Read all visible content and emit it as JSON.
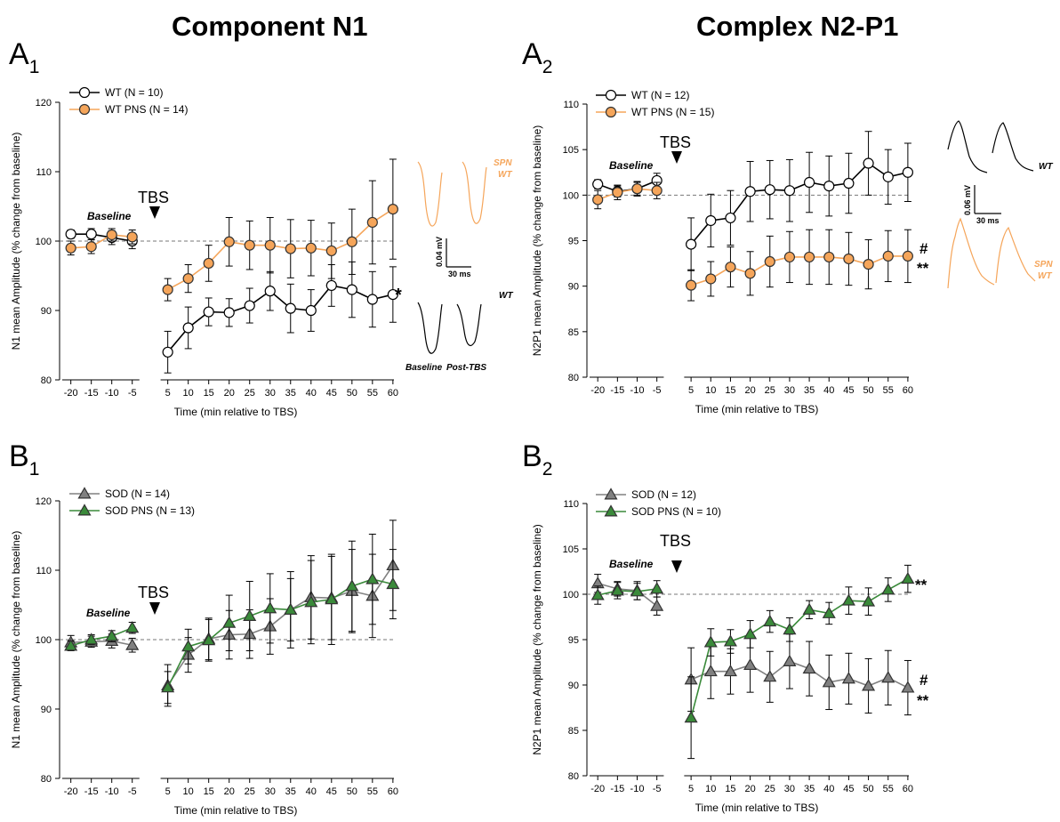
{
  "titles": {
    "left": "Component N1",
    "right": "Complex N2-P1"
  },
  "labels": {
    "a1": {
      "main": "A",
      "sub": "1"
    },
    "a2": {
      "main": "A",
      "sub": "2"
    },
    "b1": {
      "main": "B",
      "sub": "1"
    },
    "b2": {
      "main": "B",
      "sub": "2"
    }
  },
  "colors": {
    "wt": "#ffffff",
    "wt_pns": "#f5a55a",
    "sod": "#808080",
    "sod_pns": "#3a8a3a",
    "orange_text": "#f5a55a"
  },
  "chart_data": [
    {
      "id": "A1",
      "type": "line",
      "title": "",
      "xlabel": "Time (min relative to TBS)",
      "ylabel": "N1 mean Amplitude (% change from baseline)",
      "ylim": [
        80,
        120
      ],
      "yticks": [
        80,
        90,
        100,
        110,
        120
      ],
      "x": [
        -20,
        -15,
        -10,
        -5,
        5,
        10,
        15,
        20,
        25,
        30,
        35,
        40,
        45,
        50,
        55,
        60
      ],
      "xtick_labels": [
        "-20",
        "-15",
        "-10",
        "-5",
        "5",
        "10",
        "15",
        "20",
        "25",
        "30",
        "35",
        "40",
        "45",
        "50",
        "55",
        "60"
      ],
      "marker": "circle",
      "baseline_text": "Baseline",
      "tbs_text": "TBS",
      "tbs_at": -2,
      "series": [
        {
          "name": "WT (N = 10)",
          "color_key": "wt",
          "line": "#000000",
          "values": [
            101.0,
            101.0,
            100.5,
            100.0,
            84.0,
            87.5,
            89.8,
            89.7,
            90.7,
            92.8,
            90.3,
            90.0,
            93.6,
            93.0,
            91.6,
            92.3
          ],
          "errors": [
            0.6,
            0.8,
            1.0,
            1.1,
            3.0,
            3.0,
            2.0,
            2.0,
            2.5,
            2.8,
            3.5,
            3.0,
            3.0,
            4.0,
            4.0,
            4.0
          ]
        },
        {
          "name": "WT PNS (N = 14)",
          "color_key": "wt_pns",
          "line": "#f5a55a",
          "values": [
            99.0,
            99.2,
            100.9,
            100.6,
            93.0,
            94.6,
            96.8,
            99.9,
            99.4,
            99.4,
            98.9,
            99.0,
            98.6,
            99.9,
            102.7,
            104.6
          ],
          "errors": [
            1.0,
            1.0,
            0.9,
            1.0,
            1.6,
            2.0,
            2.6,
            3.5,
            3.5,
            4.0,
            4.2,
            4.0,
            4.0,
            4.7,
            6.0,
            7.2
          ]
        }
      ],
      "annotations": [
        "*"
      ]
    },
    {
      "id": "A2",
      "type": "line",
      "title": "",
      "xlabel": "Time (min relative to TBS)",
      "ylabel": "N2P1 mean Amplitude (% change from baseline)",
      "ylim": [
        80,
        110
      ],
      "yticks": [
        80,
        85,
        90,
        95,
        100,
        105,
        110
      ],
      "x": [
        -20,
        -15,
        -10,
        -5,
        5,
        10,
        15,
        20,
        25,
        30,
        35,
        40,
        45,
        50,
        55,
        60
      ],
      "xtick_labels": [
        "-20",
        "-15",
        "-10",
        "-5",
        "5",
        "10",
        "15",
        "20",
        "25",
        "30",
        "35",
        "40",
        "45",
        "50",
        "55",
        "60"
      ],
      "marker": "circle",
      "baseline_text": "Baseline",
      "tbs_text": "TBS",
      "tbs_at": 1,
      "series": [
        {
          "name": "WT (N = 12)",
          "color_key": "wt",
          "line": "#000000",
          "values": [
            101.2,
            100.4,
            100.7,
            101.6,
            94.6,
            97.2,
            97.5,
            100.4,
            100.6,
            100.5,
            101.4,
            101.0,
            101.3,
            103.5,
            102.0,
            102.5
          ],
          "errors": [
            0.5,
            0.6,
            0.7,
            0.8,
            2.9,
            2.9,
            3.0,
            3.3,
            3.2,
            3.4,
            3.3,
            3.3,
            3.3,
            3.5,
            3.0,
            3.2
          ]
        },
        {
          "name": "WT PNS (N = 15)",
          "color_key": "wt_pns",
          "line": "#f5a55a",
          "values": [
            99.5,
            100.3,
            100.7,
            100.5,
            90.1,
            90.8,
            92.1,
            91.4,
            92.7,
            93.2,
            93.2,
            93.2,
            93.0,
            92.4,
            93.3,
            93.3
          ],
          "errors": [
            1.0,
            0.8,
            0.8,
            0.9,
            1.7,
            1.9,
            2.2,
            2.4,
            2.8,
            2.8,
            3.0,
            3.0,
            2.9,
            2.7,
            2.8,
            2.9
          ]
        }
      ],
      "annotations": [
        "#",
        "**"
      ]
    },
    {
      "id": "B1",
      "type": "line",
      "title": "",
      "xlabel": "Time (min relative to TBS)",
      "ylabel": "N1 mean Amplitude (% change from baseline)",
      "ylim": [
        80,
        120
      ],
      "yticks": [
        80,
        90,
        100,
        110,
        120
      ],
      "x": [
        -20,
        -15,
        -10,
        -5,
        5,
        10,
        15,
        20,
        25,
        30,
        35,
        40,
        45,
        50,
        55,
        60
      ],
      "xtick_labels": [
        "-20",
        "-15",
        "-10",
        "-5",
        "5",
        "10",
        "15",
        "20",
        "25",
        "30",
        "35",
        "40",
        "45",
        "50",
        "55",
        "60"
      ],
      "marker": "triangle",
      "baseline_text": "Baseline",
      "tbs_text": "TBS",
      "tbs_at": -2,
      "series": [
        {
          "name": "SOD (N = 14)",
          "color_key": "sod",
          "line": "#808080",
          "values": [
            99.6,
            99.7,
            99.8,
            99.2,
            93.4,
            97.8,
            100.1,
            100.7,
            100.8,
            101.9,
            104.3,
            106.1,
            106.0,
            107.0,
            106.3,
            110.7
          ],
          "errors": [
            1.0,
            0.8,
            1.0,
            1.0,
            3.0,
            2.5,
            3.0,
            3.5,
            3.5,
            4.0,
            4.5,
            6.0,
            6.0,
            6.0,
            6.0,
            6.5
          ]
        },
        {
          "name": "SOD PNS (N = 13)",
          "color_key": "sod_pns",
          "line": "#3a8a3a",
          "values": [
            99.1,
            100.0,
            100.5,
            101.7,
            93.1,
            99.0,
            99.9,
            102.4,
            103.4,
            104.5,
            104.3,
            105.4,
            105.8,
            107.7,
            108.7,
            108.0
          ],
          "errors": [
            0.7,
            0.7,
            0.8,
            0.8,
            2.3,
            2.5,
            3.0,
            4.0,
            5.0,
            5.0,
            5.5,
            6.0,
            6.5,
            6.5,
            6.5,
            5.0
          ]
        }
      ],
      "annotations": []
    },
    {
      "id": "B2",
      "type": "line",
      "title": "",
      "xlabel": "Time (min relative to TBS)",
      "ylabel": "N2P1 mean Amplitude (% change from baseline)",
      "ylim": [
        80,
        110
      ],
      "yticks": [
        80,
        85,
        90,
        95,
        100,
        105,
        110
      ],
      "x": [
        -20,
        -15,
        -10,
        -5,
        5,
        10,
        15,
        20,
        25,
        30,
        35,
        40,
        45,
        50,
        55,
        60
      ],
      "xtick_labels": [
        "-20",
        "-15",
        "-10",
        "-5",
        "5",
        "10",
        "15",
        "20",
        "25",
        "30",
        "35",
        "40",
        "45",
        "50",
        "55",
        "60"
      ],
      "marker": "triangle",
      "baseline_text": "Baseline",
      "tbs_text": "TBS",
      "tbs_at": 1,
      "series": [
        {
          "name": "SOD (N = 12)",
          "color_key": "sod",
          "line": "#808080",
          "values": [
            101.2,
            100.6,
            100.4,
            98.7,
            90.6,
            91.5,
            91.5,
            92.2,
            90.9,
            92.6,
            91.8,
            90.3,
            90.7,
            89.9,
            90.8,
            89.7
          ],
          "errors": [
            1.0,
            0.8,
            1.0,
            1.0,
            3.5,
            3.0,
            2.5,
            3.0,
            2.8,
            3.0,
            3.0,
            3.0,
            2.8,
            3.0,
            3.0,
            3.0
          ]
        },
        {
          "name": "SOD PNS (N = 10)",
          "color_key": "sod_pns",
          "line": "#3a8a3a",
          "values": [
            99.9,
            100.4,
            100.3,
            100.6,
            86.4,
            94.7,
            94.8,
            95.6,
            97.0,
            96.1,
            98.3,
            97.9,
            99.3,
            99.2,
            100.5,
            101.7
          ],
          "errors": [
            1.0,
            0.9,
            0.9,
            0.9,
            4.5,
            1.5,
            1.3,
            1.5,
            1.2,
            1.3,
            1.0,
            1.2,
            1.5,
            1.5,
            1.3,
            1.5
          ]
        }
      ],
      "annotations": [
        "**",
        "#",
        "**"
      ]
    }
  ],
  "insets": {
    "a1": {
      "orange_label_1": "SPN",
      "orange_label_2": "WT",
      "scale_y": "0.04 mV",
      "scale_x": "30 ms",
      "black_label": "WT",
      "baseline_label": "Baseline",
      "post_label": "Post-TBS"
    },
    "a2": {
      "black_label": "WT",
      "scale_y": "0.06 mV",
      "scale_x": "30 ms",
      "orange_label_1": "SPN",
      "orange_label_2": "WT"
    }
  }
}
